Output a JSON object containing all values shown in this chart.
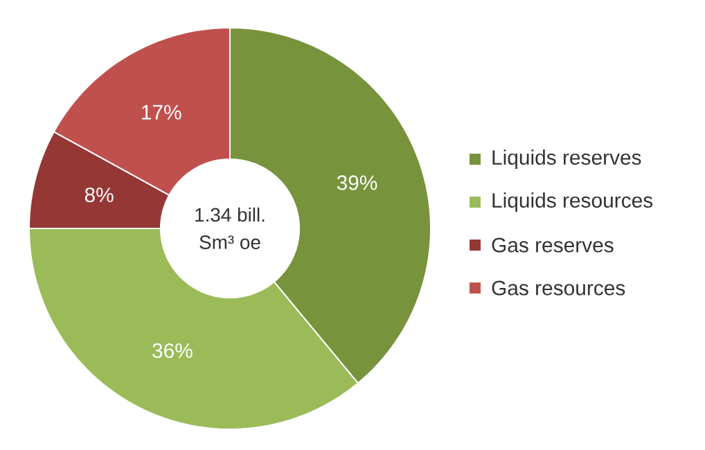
{
  "chart_data": {
    "type": "donut",
    "categories": [
      "Liquids reserves",
      "Liquids resources",
      "Gas reserves",
      "Gas resources"
    ],
    "values": [
      39,
      36,
      8,
      17
    ],
    "colors": [
      "#77933c",
      "#9bbb59",
      "#953735",
      "#c0504d"
    ],
    "value_labels": [
      "39%",
      "36%",
      "8%",
      "17%"
    ],
    "annotations": [
      "1.34 bill.",
      "Sm³ oe"
    ],
    "legend": "right"
  }
}
